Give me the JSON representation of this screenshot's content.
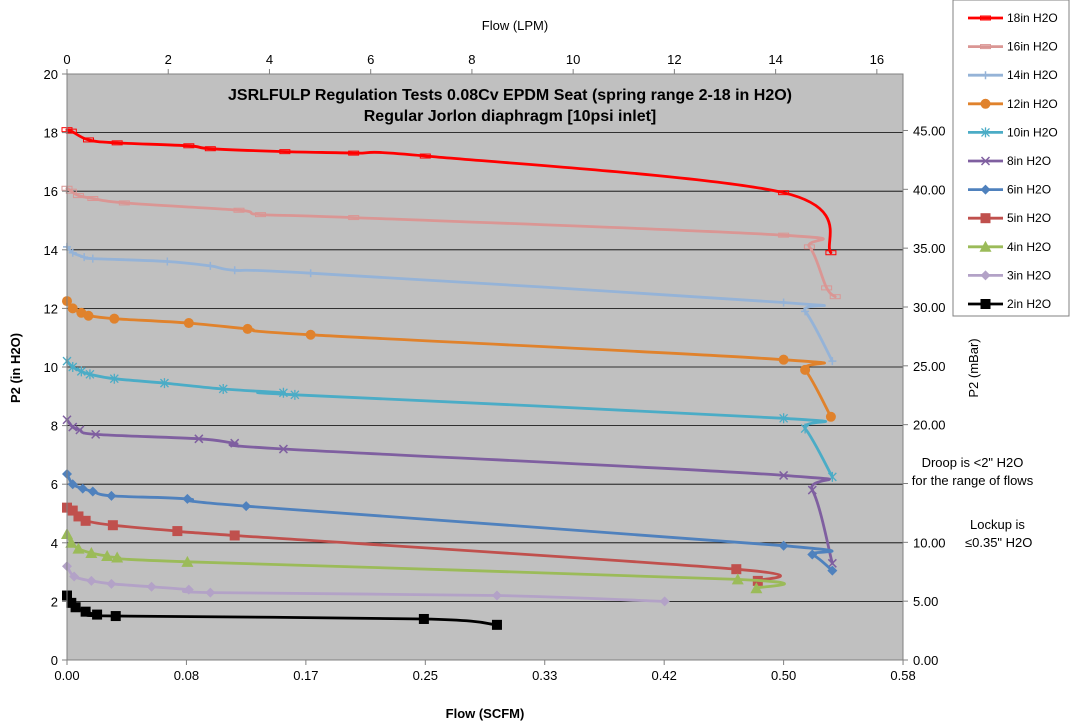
{
  "chart_data": {
    "type": "line",
    "title_lines": [
      "JSRLFULP Regulation Tests 0.08Cv EPDM Seat (spring range 2-18 in H2O)",
      "Regular Jorlon diaphragm [10psi inlet]"
    ],
    "xlabel": "Flow (SCFM)",
    "ylabel": "P2 (in H2O)",
    "x2label": "Flow (LPM)",
    "y2label": "P2 (mBar)",
    "xlim": [
      0,
      0.5833
    ],
    "ylim": [
      0,
      20
    ],
    "x2lim": [
      0,
      16.5167
    ],
    "y2lim": [
      0,
      49.8
    ],
    "x_ticks": [
      {
        "v": 0,
        "label": "0.00"
      },
      {
        "v": 0.08333,
        "label": "0.08"
      },
      {
        "v": 0.16667,
        "label": "0.17"
      },
      {
        "v": 0.25,
        "label": "0.25"
      },
      {
        "v": 0.33333,
        "label": "0.33"
      },
      {
        "v": 0.41667,
        "label": "0.42"
      },
      {
        "v": 0.5,
        "label": "0.50"
      },
      {
        "v": 0.58333,
        "label": "0.58"
      }
    ],
    "y_ticks": [
      {
        "v": 0,
        "label": "0"
      },
      {
        "v": 2,
        "label": "2"
      },
      {
        "v": 4,
        "label": "4"
      },
      {
        "v": 6,
        "label": "6"
      },
      {
        "v": 8,
        "label": "8"
      },
      {
        "v": 10,
        "label": "10"
      },
      {
        "v": 12,
        "label": "12"
      },
      {
        "v": 14,
        "label": "14"
      },
      {
        "v": 16,
        "label": "16"
      },
      {
        "v": 18,
        "label": "18"
      },
      {
        "v": 20,
        "label": "20"
      }
    ],
    "x2_ticks": [
      {
        "v": 0,
        "label": "0"
      },
      {
        "v": 2,
        "label": "2"
      },
      {
        "v": 4,
        "label": "4"
      },
      {
        "v": 6,
        "label": "6"
      },
      {
        "v": 8,
        "label": "8"
      },
      {
        "v": 10,
        "label": "10"
      },
      {
        "v": 12,
        "label": "12"
      },
      {
        "v": 14,
        "label": "14"
      },
      {
        "v": 16,
        "label": "16"
      }
    ],
    "y2_ticks": [
      {
        "v": 0,
        "label": "0.00"
      },
      {
        "v": 5,
        "label": "5.00"
      },
      {
        "v": 10,
        "label": "10.00"
      },
      {
        "v": 15,
        "label": ""
      },
      {
        "v": 20,
        "label": "20.00"
      },
      {
        "v": 25,
        "label": "25.00"
      },
      {
        "v": 30,
        "label": "30.00"
      },
      {
        "v": 35,
        "label": "35.00"
      },
      {
        "v": 40,
        "label": "40.00"
      },
      {
        "v": 45,
        "label": "45.00"
      }
    ],
    "grid": "horizontal",
    "plot_background": "#c0c0c0",
    "legend_position": "top-right",
    "series": [
      {
        "name": "18in H2O",
        "color": "#ff0000",
        "marker": "dash",
        "points": [
          [
            0,
            18.1
          ],
          [
            0.003,
            18.05
          ],
          [
            0.015,
            17.75
          ],
          [
            0.035,
            17.65
          ],
          [
            0.085,
            17.55
          ],
          [
            0.1,
            17.45
          ],
          [
            0.152,
            17.35
          ],
          [
            0.2,
            17.3
          ],
          [
            0.25,
            17.2
          ],
          [
            0.5,
            15.95
          ],
          [
            0.533,
            13.9
          ]
        ]
      },
      {
        "name": "16in H2O",
        "color": "#da9694",
        "marker": "dash",
        "points": [
          [
            0,
            16.1
          ],
          [
            0.003,
            16.0
          ],
          [
            0.008,
            15.85
          ],
          [
            0.018,
            15.75
          ],
          [
            0.04,
            15.6
          ],
          [
            0.12,
            15.35
          ],
          [
            0.135,
            15.2
          ],
          [
            0.2,
            15.1
          ],
          [
            0.5,
            14.5
          ],
          [
            0.518,
            14.1
          ],
          [
            0.53,
            12.7
          ],
          [
            0.536,
            12.4
          ]
        ]
      },
      {
        "name": "14in H2O",
        "color": "#95b3d7",
        "marker": "plus",
        "points": [
          [
            0,
            14.1
          ],
          [
            0.004,
            13.9
          ],
          [
            0.012,
            13.75
          ],
          [
            0.018,
            13.7
          ],
          [
            0.07,
            13.6
          ],
          [
            0.1,
            13.45
          ],
          [
            0.117,
            13.3
          ],
          [
            0.17,
            13.2
          ],
          [
            0.5,
            12.2
          ],
          [
            0.515,
            11.9
          ],
          [
            0.534,
            10.2
          ]
        ]
      },
      {
        "name": "12in H2O",
        "color": "#e0822c",
        "marker": "circle",
        "points": [
          [
            0,
            12.25
          ],
          [
            0.004,
            12.0
          ],
          [
            0.01,
            11.85
          ],
          [
            0.015,
            11.75
          ],
          [
            0.033,
            11.65
          ],
          [
            0.085,
            11.5
          ],
          [
            0.126,
            11.3
          ],
          [
            0.17,
            11.1
          ],
          [
            0.5,
            10.25
          ],
          [
            0.515,
            9.9
          ],
          [
            0.533,
            8.3
          ]
        ]
      },
      {
        "name": "10in H2O",
        "color": "#4bacc6",
        "marker": "star",
        "points": [
          [
            0,
            10.2
          ],
          [
            0.004,
            10.0
          ],
          [
            0.01,
            9.85
          ],
          [
            0.016,
            9.75
          ],
          [
            0.033,
            9.6
          ],
          [
            0.068,
            9.45
          ],
          [
            0.109,
            9.25
          ],
          [
            0.151,
            9.12
          ],
          [
            0.159,
            9.05
          ],
          [
            0.5,
            8.25
          ],
          [
            0.515,
            7.9
          ],
          [
            0.534,
            6.25
          ]
        ]
      },
      {
        "name": "8in H2O",
        "color": "#7f5fa0",
        "marker": "x",
        "points": [
          [
            0,
            8.2
          ],
          [
            0.004,
            7.95
          ],
          [
            0.009,
            7.85
          ],
          [
            0.02,
            7.7
          ],
          [
            0.092,
            7.55
          ],
          [
            0.117,
            7.4
          ],
          [
            0.151,
            7.2
          ],
          [
            0.5,
            6.3
          ],
          [
            0.52,
            5.8
          ],
          [
            0.534,
            3.3
          ]
        ]
      },
      {
        "name": "6in H2O",
        "color": "#4f81bd",
        "marker": "diamond",
        "points": [
          [
            0,
            6.35
          ],
          [
            0.004,
            6.0
          ],
          [
            0.011,
            5.85
          ],
          [
            0.018,
            5.75
          ],
          [
            0.031,
            5.6
          ],
          [
            0.084,
            5.5
          ],
          [
            0.125,
            5.25
          ],
          [
            0.5,
            3.9
          ],
          [
            0.52,
            3.6
          ],
          [
            0.534,
            3.05
          ]
        ]
      },
      {
        "name": "5in H2O",
        "color": "#c0504d",
        "marker": "square",
        "points": [
          [
            0,
            5.2
          ],
          [
            0.004,
            5.1
          ],
          [
            0.008,
            4.9
          ],
          [
            0.013,
            4.75
          ],
          [
            0.032,
            4.6
          ],
          [
            0.077,
            4.4
          ],
          [
            0.117,
            4.25
          ],
          [
            0.467,
            3.1
          ],
          [
            0.482,
            2.7
          ]
        ]
      },
      {
        "name": "4in H2O",
        "color": "#9bbb59",
        "marker": "triangle",
        "points": [
          [
            0,
            4.3
          ],
          [
            0.003,
            4.0
          ],
          [
            0.008,
            3.8
          ],
          [
            0.017,
            3.65
          ],
          [
            0.028,
            3.55
          ],
          [
            0.035,
            3.5
          ],
          [
            0.084,
            3.35
          ],
          [
            0.468,
            2.75
          ],
          [
            0.481,
            2.45
          ]
        ]
      },
      {
        "name": "3in H2O",
        "color": "#b3a2c7",
        "marker": "diamond",
        "points": [
          [
            0,
            3.2
          ],
          [
            0.005,
            2.85
          ],
          [
            0.017,
            2.7
          ],
          [
            0.031,
            2.6
          ],
          [
            0.059,
            2.5
          ],
          [
            0.085,
            2.4
          ],
          [
            0.1,
            2.3
          ],
          [
            0.3,
            2.2
          ],
          [
            0.417,
            2.0
          ]
        ]
      },
      {
        "name": "2in H2O",
        "color": "#000000",
        "marker": "square",
        "points": [
          [
            0,
            2.2
          ],
          [
            0.003,
            1.95
          ],
          [
            0.006,
            1.8
          ],
          [
            0.013,
            1.65
          ],
          [
            0.021,
            1.55
          ],
          [
            0.034,
            1.5
          ],
          [
            0.249,
            1.4
          ],
          [
            0.3,
            1.2
          ]
        ]
      }
    ],
    "annotations": [
      "Droop is <2\" H2O",
      "for the range of flows",
      "Lockup is",
      "≤0.35\" H2O"
    ]
  }
}
